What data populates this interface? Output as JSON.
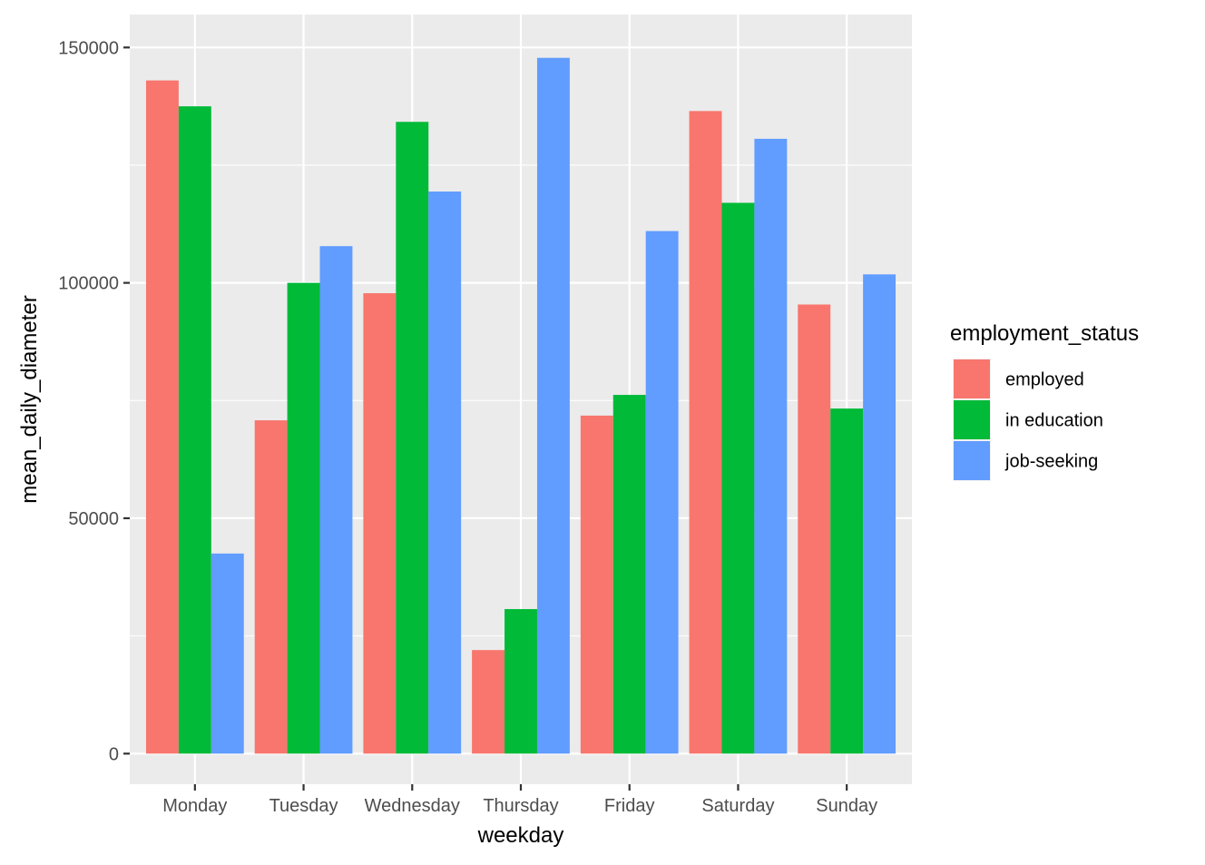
{
  "chart_data": {
    "type": "bar",
    "title": "",
    "xlabel": "weekday",
    "ylabel": "mean_daily_diameter",
    "ylim": [
      -6500,
      157000
    ],
    "y_ticks": [
      0,
      50000,
      100000,
      150000
    ],
    "y_tick_labels": [
      "0",
      "50000",
      "100000",
      "150000"
    ],
    "grid": true,
    "legend_position": "right",
    "legend_title": "employment_status",
    "categories": [
      "Monday",
      "Tuesday",
      "Wednesday",
      "Thursday",
      "Friday",
      "Saturday",
      "Sunday"
    ],
    "series": [
      {
        "name": "employed",
        "color": "#F8766D",
        "values": [
          143000,
          70800,
          97800,
          22000,
          71800,
          136500,
          95400
        ]
      },
      {
        "name": "in education",
        "color": "#00BA38",
        "values": [
          137500,
          100000,
          134200,
          30700,
          76200,
          117000,
          73300
        ]
      },
      {
        "name": "job-seeking",
        "color": "#619CFF",
        "values": [
          42500,
          107800,
          119400,
          147800,
          111000,
          130600,
          101800
        ]
      }
    ]
  },
  "colors": {
    "panel_background": "#EBEBEB",
    "grid_line": "#FFFFFF",
    "tick_label": "#4D4D4D",
    "tick_mark": "#333333"
  }
}
